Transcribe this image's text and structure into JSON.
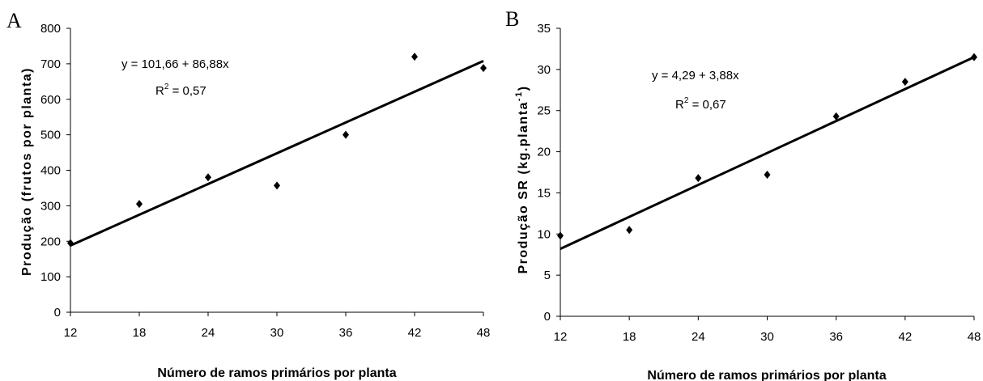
{
  "chart_data": [
    {
      "type": "scatter",
      "panel_label": "A",
      "xlabel": "Número de ramos primários por planta",
      "ylabel": "Produção (frutos por planta)",
      "ylabel_superscript": "",
      "ylabel_suffix": "",
      "x_ticks": [
        "12",
        "18",
        "24",
        "30",
        "36",
        "42",
        "48"
      ],
      "y_ticks": [
        "0",
        "100",
        "200",
        "300",
        "400",
        "500",
        "600",
        "700",
        "800"
      ],
      "xlim": [
        12,
        48
      ],
      "ylim": [
        0,
        800
      ],
      "grid": false,
      "points": [
        {
          "x": 12,
          "y": 195
        },
        {
          "x": 18,
          "y": 305
        },
        {
          "x": 24,
          "y": 380
        },
        {
          "x": 30,
          "y": 357
        },
        {
          "x": 36,
          "y": 500
        },
        {
          "x": 42,
          "y": 720
        },
        {
          "x": 48,
          "y": 688
        }
      ],
      "trendline": {
        "x": [
          12,
          48
        ],
        "y": [
          188,
          708
        ]
      },
      "equation": "y = 101,66 + 86,88x",
      "r2_prefix": "R",
      "r2_sup": "2",
      "r2_value": " = 0,57"
    },
    {
      "type": "scatter",
      "panel_label": "B",
      "xlabel": "Número de ramos primários por planta",
      "ylabel": "Produção SR (kg.planta",
      "ylabel_superscript": "-1",
      "ylabel_suffix": ")",
      "x_ticks": [
        "12",
        "18",
        "24",
        "30",
        "36",
        "42",
        "48"
      ],
      "y_ticks": [
        "0",
        "5",
        "10",
        "15",
        "20",
        "25",
        "30",
        "35"
      ],
      "xlim": [
        12,
        48
      ],
      "ylim": [
        0,
        35
      ],
      "grid": false,
      "points": [
        {
          "x": 12,
          "y": 9.8
        },
        {
          "x": 18,
          "y": 10.5
        },
        {
          "x": 24,
          "y": 16.8
        },
        {
          "x": 30,
          "y": 17.2
        },
        {
          "x": 36,
          "y": 24.3
        },
        {
          "x": 42,
          "y": 28.5
        },
        {
          "x": 48,
          "y": 31.5
        }
      ],
      "trendline": {
        "x": [
          12,
          48
        ],
        "y": [
          8.2,
          31.5
        ]
      },
      "equation": "y = 4,29 + 3,88x",
      "r2_prefix": "R",
      "r2_sup": "2",
      "r2_value": " = 0,67"
    }
  ]
}
